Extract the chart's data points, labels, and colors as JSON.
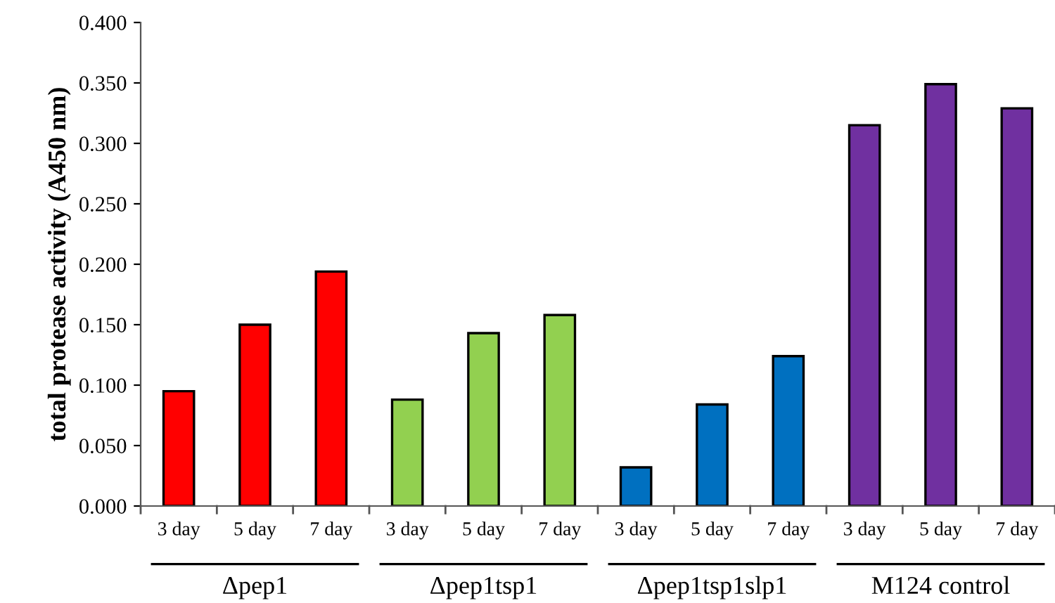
{
  "chart_data": {
    "type": "bar",
    "ylabel": "total protease activity (A450 nm)",
    "categories": [
      "3 day",
      "5 day",
      "7 day",
      "3 day",
      "5 day",
      "7 day",
      "3 day",
      "5 day",
      "7 day",
      "3 day",
      "5 day",
      "7 day"
    ],
    "values": [
      0.095,
      0.15,
      0.194,
      0.088,
      0.143,
      0.158,
      0.032,
      0.084,
      0.124,
      0.315,
      0.349,
      0.329
    ],
    "colors": [
      "#ff0000",
      "#ff0000",
      "#ff0000",
      "#92d050",
      "#92d050",
      "#92d050",
      "#0070c0",
      "#0070c0",
      "#0070c0",
      "#7030a0",
      "#7030a0",
      "#7030a0"
    ],
    "annotations": [
      "Δpep1",
      "Δpep1tsp1",
      "Δpep1tsp1slp1",
      "M124 control"
    ],
    "ylim": [
      0,
      0.4
    ],
    "yticks": [
      {
        "value": 0,
        "label": "0.000"
      },
      {
        "value": 0.05,
        "label": "0.050"
      },
      {
        "value": 0.1,
        "label": "0.100"
      },
      {
        "value": 0.15,
        "label": "0.150"
      },
      {
        "value": 0.2,
        "label": "0.200"
      },
      {
        "value": 0.25,
        "label": "0.250"
      },
      {
        "value": 0.3,
        "label": "0.300"
      },
      {
        "value": 0.35,
        "label": "0.350"
      },
      {
        "value": 0.4,
        "label": "0.400"
      }
    ],
    "grid": false
  }
}
